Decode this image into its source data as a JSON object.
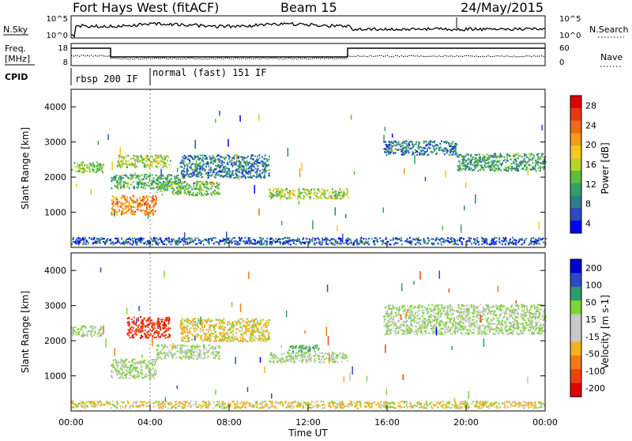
{
  "header": {
    "station": "Fort Hays West (fitACF)",
    "beam": "Beam 15",
    "date": "24/May/2015"
  },
  "top_panel": {
    "left_label": "N.Sky",
    "left_ticks": [
      "10^5",
      "10^0"
    ],
    "right_ticks": [
      "10^5",
      "10^0"
    ],
    "right_label": "N.Search"
  },
  "freq_panel": {
    "left_label_1": "Freq.",
    "left_label_2": "[MHz]",
    "left_ticks": [
      "18",
      "8"
    ],
    "right_ticks": [
      "60",
      "0"
    ],
    "right_label": "Nave"
  },
  "cpid_panel": {
    "label": "CPID",
    "modes": [
      "rbsp 200 IF",
      "normal (fast) 151 IF"
    ]
  },
  "x_axis": {
    "label": "Time UT",
    "ticks": [
      "00:00",
      "04:00",
      "08:00",
      "12:00",
      "16:00",
      "20:00",
      "00:00"
    ]
  },
  "colors": {
    "power": [
      "#0000ff",
      "#2c4bc0",
      "#2f7f8a",
      "#33a06a",
      "#5cbf3a",
      "#b8d42a",
      "#f6c81e",
      "#f39b1c",
      "#ef6a1a",
      "#e83a15",
      "#e00000"
    ],
    "velocity": [
      "#e00000",
      "#f04010",
      "#f47a18",
      "#f5b21e",
      "#c8c8c8",
      "#c8c8c8",
      "#7ed33a",
      "#2f9a6a",
      "#2c4bc0",
      "#0000d0"
    ],
    "gray": "#c8c8c8"
  },
  "chart_data": [
    {
      "type": "scatter",
      "title": "Power",
      "ylabel": "Slant Range [km]",
      "xlabel": "Time UT",
      "x_range_hours": [
        0,
        24
      ],
      "ylim": [
        0,
        4500
      ],
      "y_ticks": [
        "4000",
        "3000",
        "2000",
        "1000"
      ],
      "y_tick_values": [
        4000,
        3000,
        2000,
        1000
      ],
      "colorbar": {
        "label": "Power [dB]",
        "ticks": [
          "28",
          "24",
          "20",
          "16",
          "12",
          "8",
          "4"
        ],
        "values": [
          28,
          24,
          20,
          16,
          12,
          8,
          4
        ],
        "range": [
          0,
          30
        ]
      },
      "series": [
        {
          "t0": 0.0,
          "t1": 1.6,
          "r0": 2150,
          "r1": 2450,
          "p": 12
        },
        {
          "t0": 2.0,
          "t1": 4.3,
          "r0": 950,
          "r1": 1500,
          "p": 22
        },
        {
          "t0": 2.0,
          "t1": 5.5,
          "r0": 1700,
          "r1": 2100,
          "p": 10
        },
        {
          "t0": 2.3,
          "t1": 5.0,
          "r0": 2300,
          "r1": 2650,
          "p": 14
        },
        {
          "t0": 4.3,
          "t1": 7.5,
          "r0": 1500,
          "r1": 1900,
          "p": 12
        },
        {
          "t0": 5.5,
          "t1": 10.0,
          "r0": 2000,
          "r1": 2650,
          "p": 6
        },
        {
          "t0": 10.0,
          "t1": 14.0,
          "r0": 1400,
          "r1": 1700,
          "p": 14
        },
        {
          "t0": 15.8,
          "t1": 19.5,
          "r0": 2650,
          "r1": 3050,
          "p": 6
        },
        {
          "t0": 19.5,
          "t1": 24.0,
          "r0": 2200,
          "r1": 2700,
          "p": 9
        },
        {
          "t0": 0.0,
          "t1": 24.0,
          "r0": 100,
          "r1": 300,
          "p": 4
        }
      ]
    },
    {
      "type": "scatter",
      "title": "Velocity",
      "ylabel": "Slant Range [km]",
      "xlabel": "Time UT",
      "x_range_hours": [
        0,
        24
      ],
      "ylim": [
        0,
        4500
      ],
      "y_ticks": [
        "4000",
        "3000",
        "2000",
        "1000"
      ],
      "y_tick_values": [
        4000,
        3000,
        2000,
        1000
      ],
      "colorbar": {
        "label": "Velocity [m s-1]",
        "ticks": [
          "200",
          "100",
          "50",
          "15",
          "-15",
          "-50",
          "-100",
          "-200"
        ],
        "values": [
          200,
          100,
          50,
          15,
          -15,
          -50,
          -100,
          -200
        ]
      },
      "series": [
        {
          "t0": 0.0,
          "t1": 1.6,
          "r0": 2150,
          "r1": 2450,
          "v": 0
        },
        {
          "t0": 2.0,
          "t1": 4.3,
          "r0": 950,
          "r1": 1500,
          "v": 0
        },
        {
          "t0": 2.8,
          "t1": 5.0,
          "r0": 2100,
          "r1": 2700,
          "v": -180
        },
        {
          "t0": 4.3,
          "t1": 7.5,
          "r0": 1500,
          "r1": 1900,
          "v": 0
        },
        {
          "t0": 5.5,
          "t1": 10.0,
          "r0": 2000,
          "r1": 2650,
          "v": -40
        },
        {
          "t0": 10.0,
          "t1": 14.0,
          "r0": 1400,
          "r1": 1700,
          "v": 0
        },
        {
          "t0": 11.0,
          "t1": 12.5,
          "r0": 1700,
          "r1": 1900,
          "v": 40
        },
        {
          "t0": 15.8,
          "t1": 24.0,
          "r0": 2200,
          "r1": 3050,
          "v": 0
        },
        {
          "t0": 0.0,
          "t1": 24.0,
          "r0": 100,
          "r1": 300,
          "v": -30
        }
      ]
    }
  ]
}
